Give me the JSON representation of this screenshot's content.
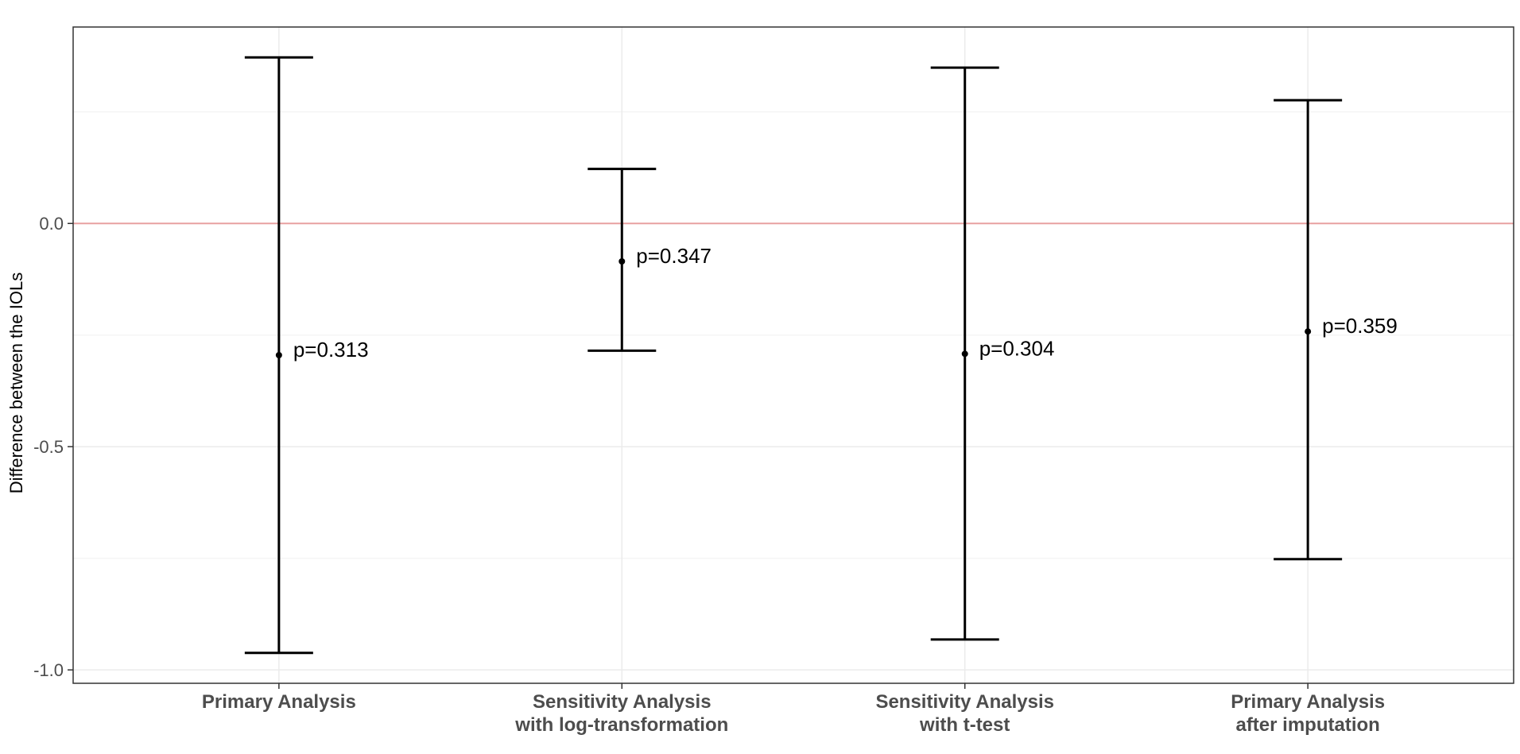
{
  "chart_data": {
    "type": "errorbar",
    "title": "",
    "xlabel": "",
    "ylabel": "Difference between the IOLs",
    "ylim": [
      -1.03,
      0.44
    ],
    "y_ticks": [
      -1.0,
      -0.5,
      0.0
    ],
    "y_tick_labels": [
      "-1.0",
      "-0.5",
      "0.0"
    ],
    "grid": true,
    "reference_line": {
      "y": 0.0,
      "color": "#e8a0a0"
    },
    "categories": [
      {
        "line1": "Primary Analysis",
        "line2": ""
      },
      {
        "line1": "Sensitivity Analysis",
        "line2": "with log-transformation"
      },
      {
        "line1": "Sensitivity Analysis",
        "line2": "with t-test"
      },
      {
        "line1": "Primary Analysis",
        "line2": "after imputation"
      }
    ],
    "points": [
      {
        "estimate": -0.295,
        "lower": -0.962,
        "upper": 0.372,
        "label": "p=0.313"
      },
      {
        "estimate": -0.085,
        "lower": -0.285,
        "upper": 0.122,
        "label": "p=0.347"
      },
      {
        "estimate": -0.292,
        "lower": -0.932,
        "upper": 0.349,
        "label": "p=0.304"
      },
      {
        "estimate": -0.242,
        "lower": -0.752,
        "upper": 0.276,
        "label": "p=0.359"
      }
    ],
    "colors": {
      "panel_border": "#333333",
      "grid_major": "#ebebeb",
      "grid_minor": "#f5f5f5",
      "errorbar": "#000000",
      "point": "#000000"
    }
  }
}
